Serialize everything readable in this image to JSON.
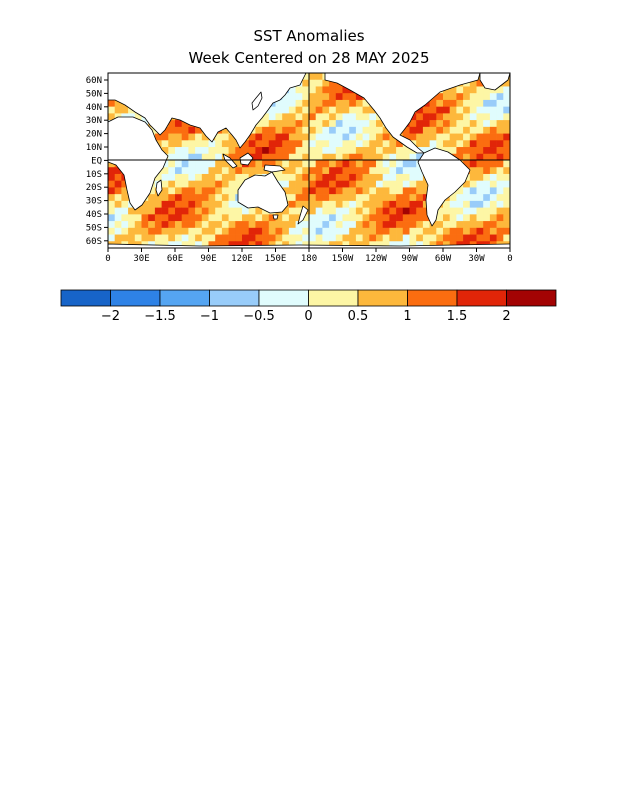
{
  "title": "SST Anomalies",
  "subtitle": "Week Centered on 28 MAY 2025",
  "lat_labels": [
    "60N",
    "50N",
    "40N",
    "30N",
    "20N",
    "10N",
    "EQ",
    "10S",
    "20S",
    "30S",
    "40S",
    "50S",
    "60S"
  ],
  "lon_labels": [
    "0",
    "30E",
    "60E",
    "90E",
    "120E",
    "150E",
    "180",
    "150W",
    "120W",
    "90W",
    "60W",
    "30W",
    "0"
  ],
  "colorbar": {
    "colors": [
      "#1764c8",
      "#2e82e6",
      "#55a5f2",
      "#98ccf9",
      "#e0fcfd",
      "#fdf6a5",
      "#fdb83c",
      "#fb6d10",
      "#e12508",
      "#a30303"
    ],
    "tick_labels": [
      "−2",
      "−1.5",
      "−1",
      "−0.5",
      "0",
      "0.5",
      "1",
      "1.5",
      "2"
    ]
  },
  "colors": {
    "land": "#ffffff",
    "coast": "#000000"
  }
}
